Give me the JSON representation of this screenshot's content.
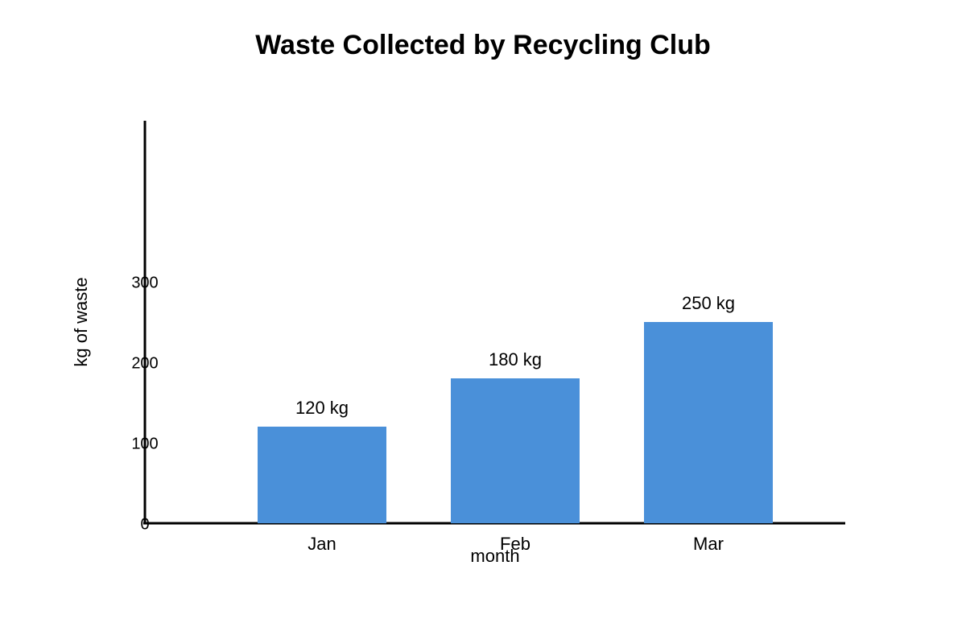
{
  "chart_data": {
    "type": "bar",
    "title": "Waste Collected by Recycling Club",
    "x_label": "month",
    "y_label": "kg of waste",
    "categories": [
      "Jan",
      "Feb",
      "Mar"
    ],
    "values": [
      120,
      180,
      250
    ],
    "value_labels": [
      "120 kg",
      "180 kg",
      "250 kg"
    ],
    "color": "#4a90d9",
    "ylim": [
      0,
      500
    ],
    "yticks": [
      0,
      100,
      200,
      300
    ],
    "grid": false
  }
}
